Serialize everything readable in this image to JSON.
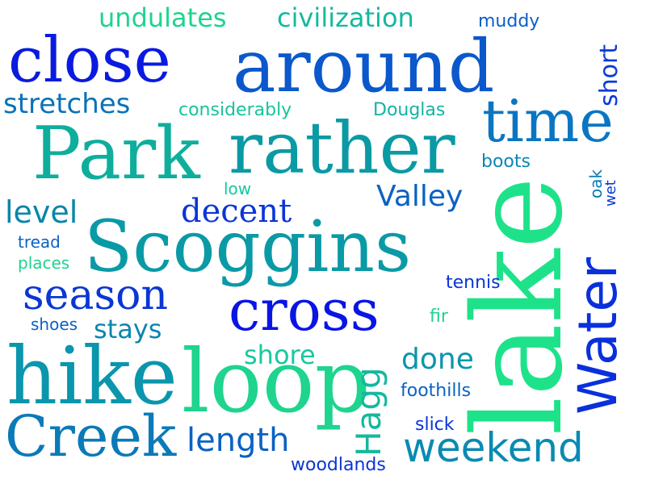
{
  "words": [
    {
      "text": "undulates",
      "color": "#1ed48e"
    },
    {
      "text": "civilization",
      "color": "#14b89e"
    },
    {
      "text": "muddy",
      "color": "#0a5fcc"
    },
    {
      "text": "close",
      "color": "#0a1ae0"
    },
    {
      "text": "around",
      "color": "#0a58cc"
    },
    {
      "text": "short",
      "color": "#0a3ad8"
    },
    {
      "text": "stretches",
      "color": "#0a72b8"
    },
    {
      "text": "considerably",
      "color": "#16c49c"
    },
    {
      "text": "Douglas",
      "color": "#12b4a4"
    },
    {
      "text": "time",
      "color": "#0a76c2"
    },
    {
      "text": "Park",
      "color": "#0fae9c"
    },
    {
      "text": "rather",
      "color": "#0a9aa4"
    },
    {
      "text": "boots",
      "color": "#0a86b6"
    },
    {
      "text": "oak",
      "color": "#0a7ab8"
    },
    {
      "text": "wet",
      "color": "#0a3ad8"
    },
    {
      "text": "low",
      "color": "#18c8a0"
    },
    {
      "text": "Valley",
      "color": "#0a62c4"
    },
    {
      "text": "level",
      "color": "#0a86a8"
    },
    {
      "text": "decent",
      "color": "#0a36d6"
    },
    {
      "text": "lake",
      "color": "#1ee28a"
    },
    {
      "text": "Scoggins",
      "color": "#0a9aa6"
    },
    {
      "text": "tread",
      "color": "#0a62c4"
    },
    {
      "text": "places",
      "color": "#1ed48e"
    },
    {
      "text": "Water",
      "color": "#0a30dc"
    },
    {
      "text": "season",
      "color": "#0a36d6"
    },
    {
      "text": "tennis",
      "color": "#0a36d6"
    },
    {
      "text": "cross",
      "color": "#0a14e4"
    },
    {
      "text": "shoes",
      "color": "#0a62c4"
    },
    {
      "text": "stays",
      "color": "#0a86b0"
    },
    {
      "text": "fir",
      "color": "#1ed48e"
    },
    {
      "text": "shore",
      "color": "#18c8a0"
    },
    {
      "text": "done",
      "color": "#0a96ac"
    },
    {
      "text": "hike",
      "color": "#0a96ac"
    },
    {
      "text": "loop",
      "color": "#1ed48e"
    },
    {
      "text": "Hagg",
      "color": "#14b89e"
    },
    {
      "text": "foothills",
      "color": "#0a62c4"
    },
    {
      "text": "Creek",
      "color": "#0a7ab8"
    },
    {
      "text": "length",
      "color": "#0a62c4"
    },
    {
      "text": "slick",
      "color": "#0a36d6"
    },
    {
      "text": "weekend",
      "color": "#0a8ab2"
    },
    {
      "text": "woodlands",
      "color": "#0a36d6"
    }
  ]
}
